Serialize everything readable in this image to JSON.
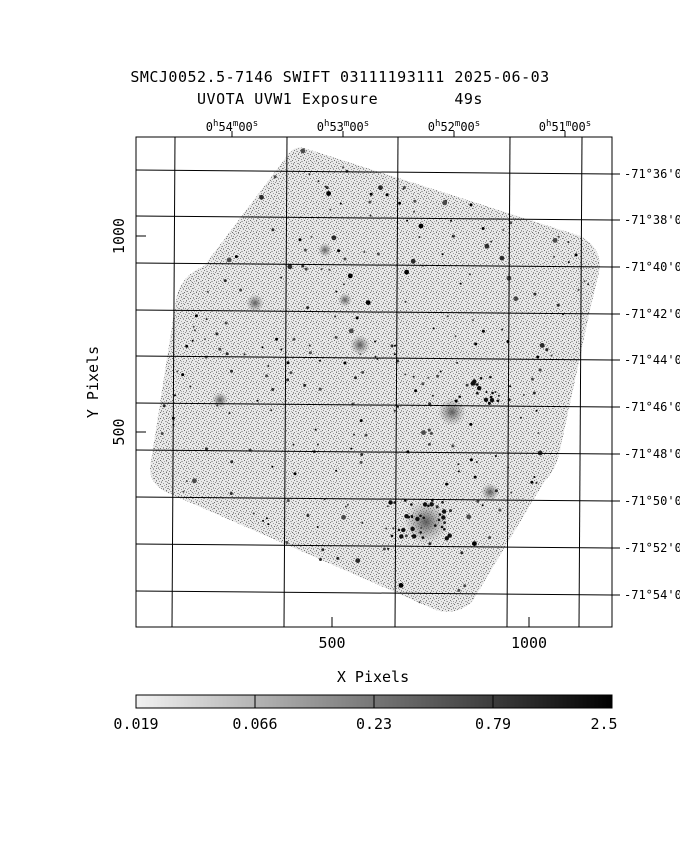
{
  "header": {
    "title_line1": "SMCJ0052.5-7146 SWIFT 03111193111 2025-06-03",
    "title_line2": "UVOTA UVW1 Exposure        49s"
  },
  "axes": {
    "xlabel": "X Pixels",
    "ylabel": "Y Pixels",
    "x_ticks": [
      "500",
      "1000"
    ],
    "y_ticks": [
      "1000",
      "500"
    ],
    "ra_ticks": [
      {
        "h": "0",
        "m": "54",
        "s": "00"
      },
      {
        "h": "0",
        "m": "53",
        "s": "00"
      },
      {
        "h": "0",
        "m": "52",
        "s": "00"
      },
      {
        "h": "0",
        "m": "51",
        "s": "00"
      }
    ],
    "dec_ticks": [
      "-71°36'0",
      "-71°38'0",
      "-71°40'0",
      "-71°42'0",
      "-71°44'0",
      "-71°46'0",
      "-71°48'0",
      "-71°50'0",
      "-71°52'0",
      "-71°54'0"
    ]
  },
  "colorbar": {
    "labels": [
      "0.019",
      "0.066",
      "0.23",
      "0.79",
      "2.5"
    ]
  },
  "colors": {
    "background": "#ffffff",
    "ink": "#000000",
    "noise": "#8a8a8a"
  }
}
